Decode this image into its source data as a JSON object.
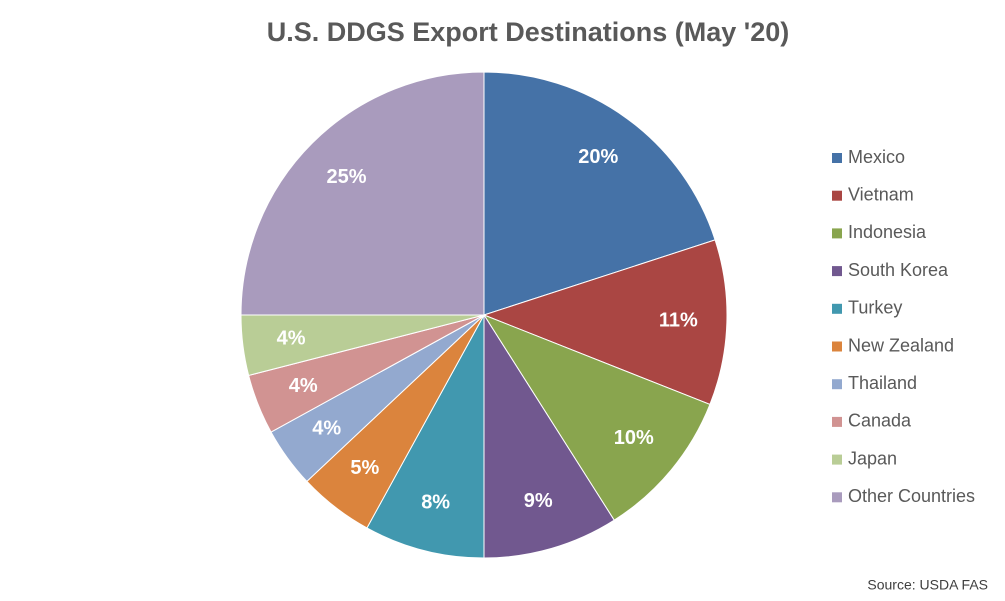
{
  "chart_data": {
    "type": "pie",
    "title": "U.S. DDGS Export Destinations (May '20)",
    "categories": [
      "Mexico",
      "Vietnam",
      "Indonesia",
      "South Korea",
      "Turkey",
      "New Zealand",
      "Thailand",
      "Canada",
      "Japan",
      "Other Countries"
    ],
    "values": [
      20,
      11,
      10,
      9,
      8,
      5,
      4,
      4,
      4,
      25
    ],
    "value_labels": [
      "20%",
      "11%",
      "10%",
      "9%",
      "8%",
      "5%",
      "4%",
      "4%",
      "4%",
      "25%"
    ],
    "colors": [
      "#4572a7",
      "#aa4643",
      "#89a54e",
      "#71588f",
      "#4198af",
      "#db843d",
      "#93a9cf",
      "#d19392",
      "#b9cd96",
      "#a99bbd"
    ],
    "legend": "right",
    "source": "Source: USDA FAS"
  }
}
